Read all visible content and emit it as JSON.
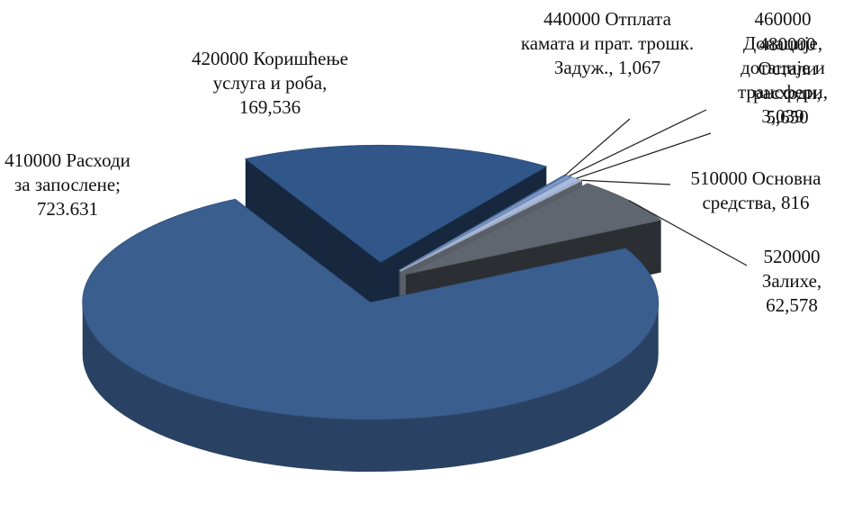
{
  "chart_data": {
    "type": "pie3d",
    "categories": [
      "410000 Расходи за запослене;",
      "420000 Коришћење услуга и роба,",
      "440000 Отплата камата и прат. трошк. Задуж.,",
      "460000 Донације, дотације и трансфери,",
      "480000 Остали расходи,",
      "510000 Основна средства,",
      "520000 Залихе,"
    ],
    "values": [
      723631,
      169536,
      1067,
      3039,
      5650,
      816,
      62578
    ],
    "value_labels": [
      "723.631",
      "169,536",
      "1,067",
      "3,039",
      "5,650",
      "816",
      "62,578"
    ],
    "colors": [
      "#3a5e8e",
      "#31578a",
      "#4f74a6",
      "#7d9acb",
      "#a7bbdf",
      "#c7d3ea",
      "#60666f"
    ]
  }
}
